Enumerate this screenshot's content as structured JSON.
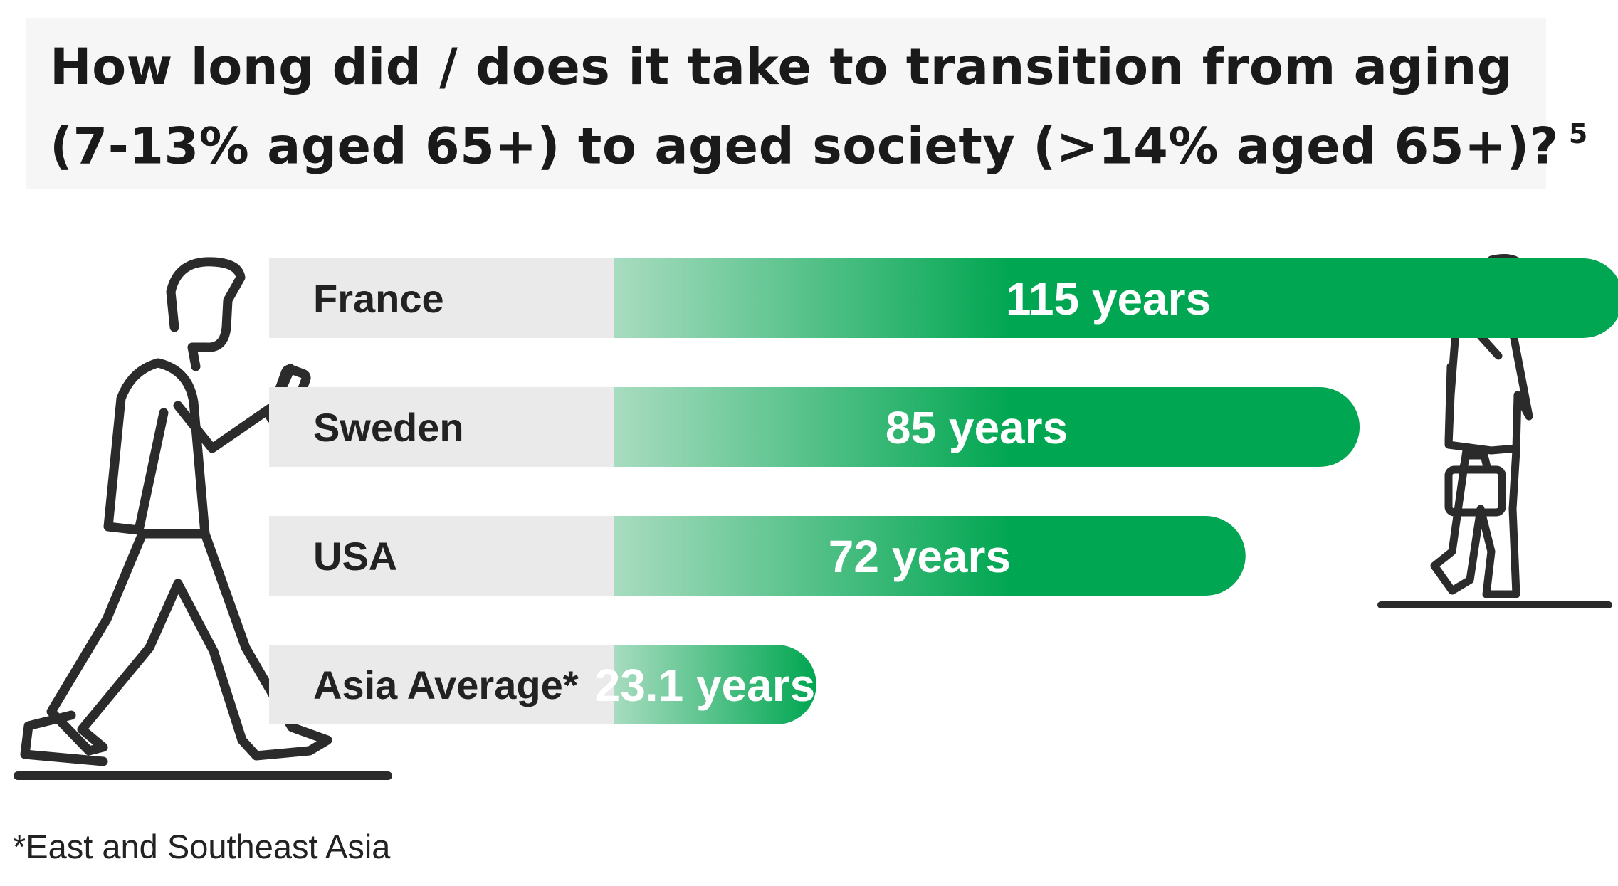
{
  "title": {
    "line1": "How long did / does it take to transition from aging",
    "line2": "(7-13% aged 65+) to aged society (>14% aged 65+)?",
    "superscript": "5"
  },
  "chart_data": {
    "type": "bar",
    "orientation": "horizontal",
    "categories": [
      "France",
      "Sweden",
      "USA",
      "Asia Average*"
    ],
    "values": [
      115,
      85,
      72,
      23.1
    ],
    "value_labels": [
      "115 years",
      "85 years",
      "72 years",
      "23.1 years"
    ],
    "unit": "years",
    "colors": {
      "bar": "#00a651",
      "bar_fade": "#a8dcc0",
      "label_bg": "#eaeaea"
    }
  },
  "footnote": "*East and Southeast Asia",
  "icons": {
    "left": "walking-young-man-icon",
    "right": "walking-elderly-man-icon"
  }
}
